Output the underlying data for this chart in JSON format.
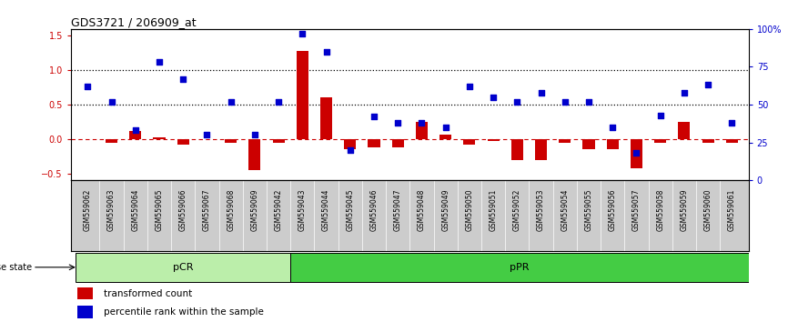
{
  "title": "GDS3721 / 206909_at",
  "categories": [
    "GSM559062",
    "GSM559063",
    "GSM559064",
    "GSM559065",
    "GSM559066",
    "GSM559067",
    "GSM559068",
    "GSM559069",
    "GSM559042",
    "GSM559043",
    "GSM559044",
    "GSM559045",
    "GSM559046",
    "GSM559047",
    "GSM559048",
    "GSM559049",
    "GSM559050",
    "GSM559051",
    "GSM559052",
    "GSM559053",
    "GSM559054",
    "GSM559055",
    "GSM559056",
    "GSM559057",
    "GSM559058",
    "GSM559059",
    "GSM559060",
    "GSM559061"
  ],
  "transformed_count": [
    0.0,
    -0.05,
    0.12,
    0.02,
    -0.08,
    0.0,
    -0.05,
    -0.45,
    -0.05,
    1.28,
    0.6,
    -0.15,
    -0.12,
    -0.12,
    0.25,
    0.07,
    -0.08,
    -0.03,
    -0.3,
    -0.3,
    -0.05,
    -0.15,
    -0.15,
    -0.42,
    -0.05,
    0.25,
    -0.05,
    -0.05
  ],
  "percentile_rank": [
    0.62,
    0.52,
    0.33,
    0.78,
    0.67,
    0.3,
    0.52,
    0.3,
    0.52,
    0.97,
    0.85,
    0.2,
    0.42,
    0.38,
    0.38,
    0.35,
    0.62,
    0.55,
    0.52,
    0.58,
    0.52,
    0.52,
    0.35,
    0.18,
    0.43,
    0.58,
    0.63,
    0.38
  ],
  "pCR_count": 9,
  "pPR_count": 19,
  "bar_color": "#cc0000",
  "dot_color": "#0000cc",
  "ylim_left": [
    -0.6,
    1.6
  ],
  "ylim_right": [
    0,
    100
  ],
  "hline_y": [
    0.5,
    1.0
  ],
  "pcr_color": "#bbeeaa",
  "ppr_color": "#44cc44",
  "background_color": "#ffffff",
  "label_bar": "transformed count",
  "label_dot": "percentile rank within the sample",
  "left_yticks": [
    -0.5,
    0.0,
    0.5,
    1.0,
    1.5
  ],
  "right_yticks": [
    0,
    25,
    50,
    75,
    100
  ],
  "right_yticklabels": [
    "0",
    "25",
    "50",
    "75",
    "100%"
  ]
}
